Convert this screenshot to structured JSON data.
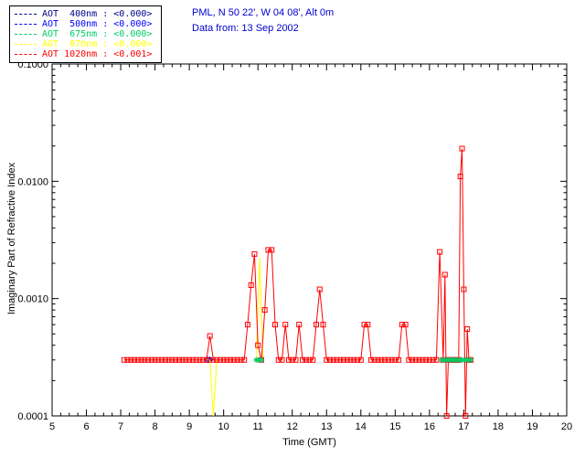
{
  "header": {
    "line1": "PML, N 50 22', W 04 08', Alt 0m",
    "line2": "Data from: 13 Sep 2002",
    "color": "#0000D0"
  },
  "legend": {
    "entries": [
      {
        "label": "AOT  400nm",
        "value": "<0.000>",
        "color": "#00008B"
      },
      {
        "label": "AOT  500nm",
        "value": "<0.000>",
        "color": "#0000FF"
      },
      {
        "label": "AOT  675nm",
        "value": "<0.000>",
        "color": "#00CC66"
      },
      {
        "label": "AOT  870nm",
        "value": "<0.000>",
        "color": "#FFFF00"
      },
      {
        "label": "AOT 1020nm",
        "value": "<0.001>",
        "color": "#FF0000"
      }
    ]
  },
  "chart_data": {
    "type": "line",
    "title": "",
    "xlabel": "Time (GMT)",
    "ylabel": "Imaginary Part of Refractive Index",
    "xlim": [
      5,
      20
    ],
    "ylim": [
      0.0001,
      0.1
    ],
    "ylog": true,
    "grid": false,
    "legend_position": "top-left",
    "xticks": [
      5,
      6,
      7,
      8,
      9,
      10,
      11,
      12,
      13,
      14,
      15,
      16,
      17,
      18,
      19,
      20
    ],
    "ytick_values": [
      0.0001,
      0.001,
      0.01,
      0.1
    ],
    "ytick_labels": [
      "0.0001",
      "0.0010",
      "0.0100",
      "0.1000"
    ],
    "series": [
      {
        "name": "AOT 400nm",
        "color": "#00008B",
        "marker": "plus",
        "points": [
          [
            9.6,
            0.0003
          ]
        ]
      },
      {
        "name": "AOT 500nm",
        "color": "#0000FF",
        "marker": "diamond",
        "points": [
          [
            9.55,
            0.0003
          ],
          [
            9.6,
            0.0003
          ]
        ]
      },
      {
        "name": "AOT 870nm",
        "color": "#FFFF00",
        "marker": "none",
        "points": [
          [
            9.5,
            0.0003
          ],
          [
            9.6,
            0.0003
          ],
          [
            9.7,
            0.0001
          ],
          [
            9.8,
            0.0003
          ],
          null,
          [
            10.95,
            0.0003
          ],
          [
            11.05,
            0.0022
          ],
          [
            11.15,
            0.0003
          ]
        ]
      },
      {
        "name": "AOT 1020nm",
        "color": "#FF0000",
        "marker": "square",
        "points": [
          [
            7.1,
            0.0003
          ],
          [
            7.2,
            0.0003
          ],
          [
            7.3,
            0.0003
          ],
          [
            7.4,
            0.0003
          ],
          [
            7.5,
            0.0003
          ],
          [
            7.6,
            0.0003
          ],
          [
            7.7,
            0.0003
          ],
          [
            7.8,
            0.0003
          ],
          [
            7.9,
            0.0003
          ],
          [
            8.0,
            0.0003
          ],
          [
            8.1,
            0.0003
          ],
          [
            8.2,
            0.0003
          ],
          [
            8.3,
            0.0003
          ],
          [
            8.4,
            0.0003
          ],
          [
            8.5,
            0.0003
          ],
          [
            8.6,
            0.0003
          ],
          [
            8.7,
            0.0003
          ],
          [
            8.8,
            0.0003
          ],
          [
            8.9,
            0.0003
          ],
          [
            9.0,
            0.0003
          ],
          [
            9.1,
            0.0003
          ],
          [
            9.2,
            0.0003
          ],
          [
            9.3,
            0.0003
          ],
          [
            9.4,
            0.0003
          ],
          [
            9.5,
            0.0003
          ],
          [
            9.6,
            0.00048
          ],
          [
            9.7,
            0.0003
          ],
          [
            9.8,
            0.0003
          ],
          [
            9.9,
            0.0003
          ],
          [
            10.0,
            0.0003
          ],
          [
            10.1,
            0.0003
          ],
          [
            10.2,
            0.0003
          ],
          [
            10.3,
            0.0003
          ],
          [
            10.4,
            0.0003
          ],
          [
            10.5,
            0.0003
          ],
          [
            10.6,
            0.0003
          ],
          [
            10.7,
            0.0006
          ],
          [
            10.8,
            0.0013
          ],
          [
            10.9,
            0.0024
          ],
          [
            11.0,
            0.0004
          ],
          [
            11.1,
            0.0003
          ],
          [
            11.2,
            0.0008
          ],
          [
            11.3,
            0.0026
          ],
          [
            11.4,
            0.0026
          ],
          [
            11.5,
            0.0006
          ],
          [
            11.6,
            0.0003
          ],
          [
            11.7,
            0.0003
          ],
          [
            11.8,
            0.0006
          ],
          [
            11.9,
            0.0003
          ],
          [
            12.0,
            0.0003
          ],
          [
            12.1,
            0.0003
          ],
          [
            12.2,
            0.0006
          ],
          [
            12.3,
            0.0003
          ],
          [
            12.4,
            0.0003
          ],
          [
            12.5,
            0.0003
          ],
          [
            12.6,
            0.0003
          ],
          [
            12.7,
            0.0006
          ],
          [
            12.8,
            0.0012
          ],
          [
            12.9,
            0.0006
          ],
          [
            13.0,
            0.0003
          ],
          [
            13.1,
            0.0003
          ],
          [
            13.2,
            0.0003
          ],
          [
            13.3,
            0.0003
          ],
          [
            13.4,
            0.0003
          ],
          [
            13.5,
            0.0003
          ],
          [
            13.6,
            0.0003
          ],
          [
            13.7,
            0.0003
          ],
          [
            13.8,
            0.0003
          ],
          [
            13.9,
            0.0003
          ],
          [
            14.0,
            0.0003
          ],
          [
            14.1,
            0.0006
          ],
          [
            14.2,
            0.0006
          ],
          [
            14.3,
            0.0003
          ],
          [
            14.4,
            0.0003
          ],
          [
            14.5,
            0.0003
          ],
          [
            14.6,
            0.0003
          ],
          [
            14.7,
            0.0003
          ],
          [
            14.8,
            0.0003
          ],
          [
            14.9,
            0.0003
          ],
          [
            15.0,
            0.0003
          ],
          [
            15.1,
            0.0003
          ],
          [
            15.2,
            0.0006
          ],
          [
            15.3,
            0.0006
          ],
          [
            15.4,
            0.0003
          ],
          [
            15.5,
            0.0003
          ],
          [
            15.6,
            0.0003
          ],
          [
            15.7,
            0.0003
          ],
          [
            15.8,
            0.0003
          ],
          [
            15.9,
            0.0003
          ],
          [
            16.0,
            0.0003
          ],
          [
            16.1,
            0.0003
          ],
          [
            16.2,
            0.0003
          ],
          [
            16.3,
            0.0025
          ],
          [
            16.4,
            0.0003
          ],
          [
            16.45,
            0.0016
          ],
          [
            16.5,
            0.0001
          ],
          [
            16.55,
            0.0003
          ],
          [
            16.6,
            0.0003
          ],
          [
            16.65,
            0.0003
          ],
          [
            16.7,
            0.0003
          ],
          [
            16.75,
            0.0003
          ],
          [
            16.8,
            0.0003
          ],
          [
            16.85,
            0.0003
          ],
          [
            16.9,
            0.011
          ],
          [
            16.95,
            0.019
          ],
          [
            17.0,
            0.0012
          ],
          [
            17.05,
            0.0001
          ],
          [
            17.1,
            0.00055
          ],
          [
            17.15,
            0.0003
          ],
          [
            17.2,
            0.0003
          ]
        ]
      },
      {
        "name": "AOT 675nm",
        "color": "#00CC66",
        "marker": "asterisk",
        "points": [
          [
            10.95,
            0.0003
          ],
          [
            11.0,
            0.0003
          ],
          [
            11.05,
            0.0003
          ],
          [
            11.1,
            0.0003
          ],
          null,
          [
            16.35,
            0.0003
          ],
          [
            16.4,
            0.0003
          ],
          [
            16.45,
            0.0003
          ],
          [
            16.5,
            0.0003
          ],
          [
            16.55,
            0.0003
          ],
          [
            16.6,
            0.0003
          ],
          [
            16.65,
            0.0003
          ],
          [
            16.7,
            0.0003
          ],
          [
            16.75,
            0.0003
          ],
          [
            16.8,
            0.0003
          ],
          [
            16.85,
            0.0003
          ],
          [
            16.9,
            0.0003
          ],
          [
            16.95,
            0.0003
          ],
          [
            17.0,
            0.0003
          ],
          [
            17.05,
            0.0003
          ],
          [
            17.1,
            0.0003
          ],
          [
            17.15,
            0.0003
          ],
          [
            17.2,
            0.0003
          ]
        ]
      }
    ]
  }
}
